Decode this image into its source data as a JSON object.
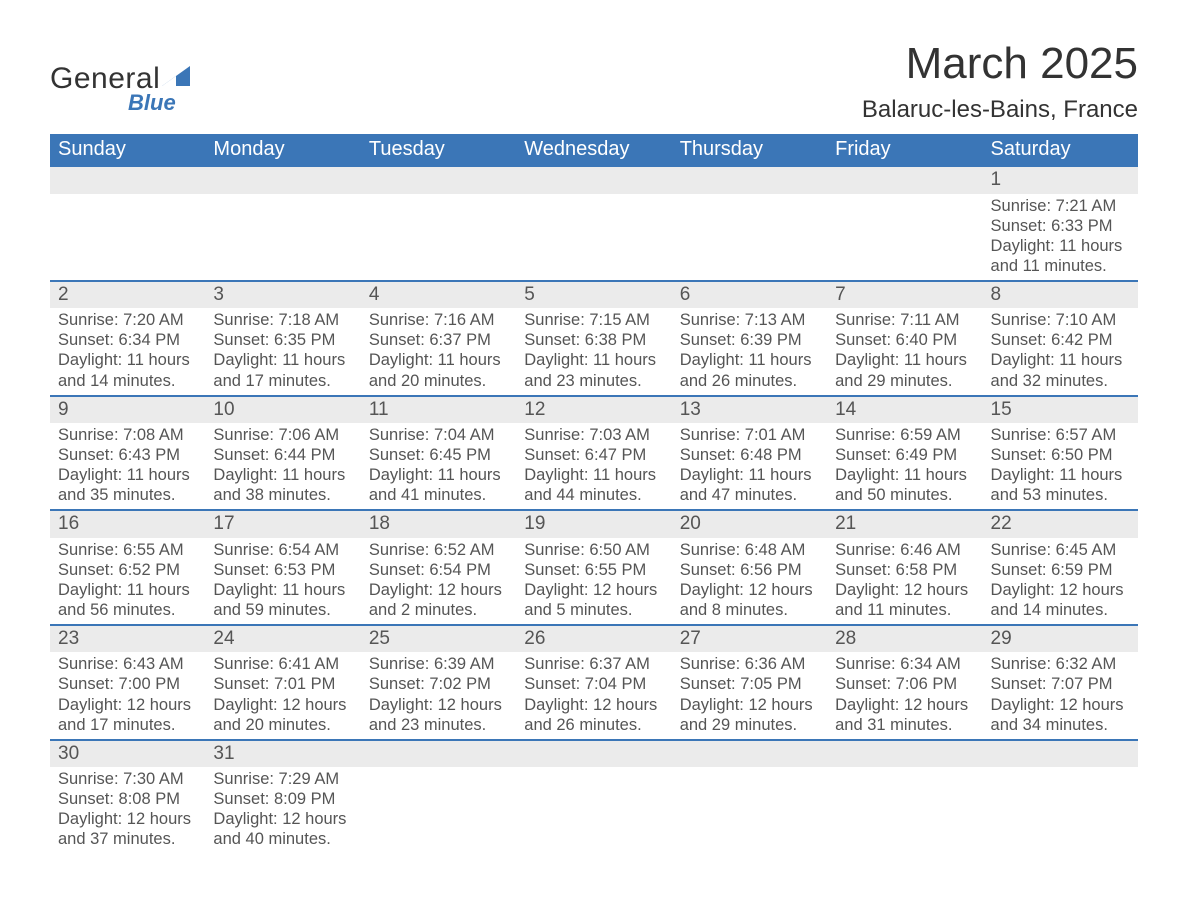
{
  "brand": {
    "name": "General",
    "sub": "Blue"
  },
  "title": "March 2025",
  "location": "Balaruc-les-Bains, France",
  "colors": {
    "header_bg": "#3b76b7",
    "header_text": "#ffffff",
    "daynum_bg": "#ebebeb",
    "border": "#3b76b7",
    "body_text": "#555555",
    "page_bg": "#ffffff",
    "logo_accent": "#3b76b7"
  },
  "fonts": {
    "family": "Arial",
    "title_size_pt": 33,
    "location_size_pt": 18,
    "header_size_pt": 15,
    "cell_size_pt": 12
  },
  "day_headers": [
    "Sunday",
    "Monday",
    "Tuesday",
    "Wednesday",
    "Thursday",
    "Friday",
    "Saturday"
  ],
  "weeks": [
    [
      null,
      null,
      null,
      null,
      null,
      null,
      {
        "n": "1",
        "sunrise": "Sunrise: 7:21 AM",
        "sunset": "Sunset: 6:33 PM",
        "dl1": "Daylight: 11 hours",
        "dl2": "and 11 minutes."
      }
    ],
    [
      {
        "n": "2",
        "sunrise": "Sunrise: 7:20 AM",
        "sunset": "Sunset: 6:34 PM",
        "dl1": "Daylight: 11 hours",
        "dl2": "and 14 minutes."
      },
      {
        "n": "3",
        "sunrise": "Sunrise: 7:18 AM",
        "sunset": "Sunset: 6:35 PM",
        "dl1": "Daylight: 11 hours",
        "dl2": "and 17 minutes."
      },
      {
        "n": "4",
        "sunrise": "Sunrise: 7:16 AM",
        "sunset": "Sunset: 6:37 PM",
        "dl1": "Daylight: 11 hours",
        "dl2": "and 20 minutes."
      },
      {
        "n": "5",
        "sunrise": "Sunrise: 7:15 AM",
        "sunset": "Sunset: 6:38 PM",
        "dl1": "Daylight: 11 hours",
        "dl2": "and 23 minutes."
      },
      {
        "n": "6",
        "sunrise": "Sunrise: 7:13 AM",
        "sunset": "Sunset: 6:39 PM",
        "dl1": "Daylight: 11 hours",
        "dl2": "and 26 minutes."
      },
      {
        "n": "7",
        "sunrise": "Sunrise: 7:11 AM",
        "sunset": "Sunset: 6:40 PM",
        "dl1": "Daylight: 11 hours",
        "dl2": "and 29 minutes."
      },
      {
        "n": "8",
        "sunrise": "Sunrise: 7:10 AM",
        "sunset": "Sunset: 6:42 PM",
        "dl1": "Daylight: 11 hours",
        "dl2": "and 32 minutes."
      }
    ],
    [
      {
        "n": "9",
        "sunrise": "Sunrise: 7:08 AM",
        "sunset": "Sunset: 6:43 PM",
        "dl1": "Daylight: 11 hours",
        "dl2": "and 35 minutes."
      },
      {
        "n": "10",
        "sunrise": "Sunrise: 7:06 AM",
        "sunset": "Sunset: 6:44 PM",
        "dl1": "Daylight: 11 hours",
        "dl2": "and 38 minutes."
      },
      {
        "n": "11",
        "sunrise": "Sunrise: 7:04 AM",
        "sunset": "Sunset: 6:45 PM",
        "dl1": "Daylight: 11 hours",
        "dl2": "and 41 minutes."
      },
      {
        "n": "12",
        "sunrise": "Sunrise: 7:03 AM",
        "sunset": "Sunset: 6:47 PM",
        "dl1": "Daylight: 11 hours",
        "dl2": "and 44 minutes."
      },
      {
        "n": "13",
        "sunrise": "Sunrise: 7:01 AM",
        "sunset": "Sunset: 6:48 PM",
        "dl1": "Daylight: 11 hours",
        "dl2": "and 47 minutes."
      },
      {
        "n": "14",
        "sunrise": "Sunrise: 6:59 AM",
        "sunset": "Sunset: 6:49 PM",
        "dl1": "Daylight: 11 hours",
        "dl2": "and 50 minutes."
      },
      {
        "n": "15",
        "sunrise": "Sunrise: 6:57 AM",
        "sunset": "Sunset: 6:50 PM",
        "dl1": "Daylight: 11 hours",
        "dl2": "and 53 minutes."
      }
    ],
    [
      {
        "n": "16",
        "sunrise": "Sunrise: 6:55 AM",
        "sunset": "Sunset: 6:52 PM",
        "dl1": "Daylight: 11 hours",
        "dl2": "and 56 minutes."
      },
      {
        "n": "17",
        "sunrise": "Sunrise: 6:54 AM",
        "sunset": "Sunset: 6:53 PM",
        "dl1": "Daylight: 11 hours",
        "dl2": "and 59 minutes."
      },
      {
        "n": "18",
        "sunrise": "Sunrise: 6:52 AM",
        "sunset": "Sunset: 6:54 PM",
        "dl1": "Daylight: 12 hours",
        "dl2": "and 2 minutes."
      },
      {
        "n": "19",
        "sunrise": "Sunrise: 6:50 AM",
        "sunset": "Sunset: 6:55 PM",
        "dl1": "Daylight: 12 hours",
        "dl2": "and 5 minutes."
      },
      {
        "n": "20",
        "sunrise": "Sunrise: 6:48 AM",
        "sunset": "Sunset: 6:56 PM",
        "dl1": "Daylight: 12 hours",
        "dl2": "and 8 minutes."
      },
      {
        "n": "21",
        "sunrise": "Sunrise: 6:46 AM",
        "sunset": "Sunset: 6:58 PM",
        "dl1": "Daylight: 12 hours",
        "dl2": "and 11 minutes."
      },
      {
        "n": "22",
        "sunrise": "Sunrise: 6:45 AM",
        "sunset": "Sunset: 6:59 PM",
        "dl1": "Daylight: 12 hours",
        "dl2": "and 14 minutes."
      }
    ],
    [
      {
        "n": "23",
        "sunrise": "Sunrise: 6:43 AM",
        "sunset": "Sunset: 7:00 PM",
        "dl1": "Daylight: 12 hours",
        "dl2": "and 17 minutes."
      },
      {
        "n": "24",
        "sunrise": "Sunrise: 6:41 AM",
        "sunset": "Sunset: 7:01 PM",
        "dl1": "Daylight: 12 hours",
        "dl2": "and 20 minutes."
      },
      {
        "n": "25",
        "sunrise": "Sunrise: 6:39 AM",
        "sunset": "Sunset: 7:02 PM",
        "dl1": "Daylight: 12 hours",
        "dl2": "and 23 minutes."
      },
      {
        "n": "26",
        "sunrise": "Sunrise: 6:37 AM",
        "sunset": "Sunset: 7:04 PM",
        "dl1": "Daylight: 12 hours",
        "dl2": "and 26 minutes."
      },
      {
        "n": "27",
        "sunrise": "Sunrise: 6:36 AM",
        "sunset": "Sunset: 7:05 PM",
        "dl1": "Daylight: 12 hours",
        "dl2": "and 29 minutes."
      },
      {
        "n": "28",
        "sunrise": "Sunrise: 6:34 AM",
        "sunset": "Sunset: 7:06 PM",
        "dl1": "Daylight: 12 hours",
        "dl2": "and 31 minutes."
      },
      {
        "n": "29",
        "sunrise": "Sunrise: 6:32 AM",
        "sunset": "Sunset: 7:07 PM",
        "dl1": "Daylight: 12 hours",
        "dl2": "and 34 minutes."
      }
    ],
    [
      {
        "n": "30",
        "sunrise": "Sunrise: 7:30 AM",
        "sunset": "Sunset: 8:08 PM",
        "dl1": "Daylight: 12 hours",
        "dl2": "and 37 minutes."
      },
      {
        "n": "31",
        "sunrise": "Sunrise: 7:29 AM",
        "sunset": "Sunset: 8:09 PM",
        "dl1": "Daylight: 12 hours",
        "dl2": "and 40 minutes."
      },
      null,
      null,
      null,
      null,
      null
    ]
  ]
}
